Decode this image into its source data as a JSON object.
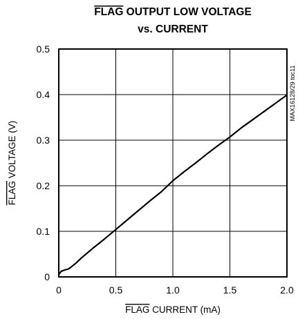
{
  "chart_data": {
    "type": "line",
    "title": {
      "overbar": "FLAG",
      "line1_rest": " OUTPUT LOW VOLTAGE",
      "line2": "vs. CURRENT"
    },
    "xlabel": {
      "overbar": "FLAG",
      "rest": " CURRENT (mA)"
    },
    "ylabel": {
      "overbar": "FLAG",
      "rest": " VOLTAGE (V)"
    },
    "side_label": "MAX16128/29 toc11",
    "xlim": [
      0,
      2.0
    ],
    "ylim": [
      0,
      0.5
    ],
    "x_ticks": [
      0,
      0.5,
      1.0,
      1.5,
      2.0
    ],
    "x_tick_labels": [
      "0",
      "0.5",
      "1.0",
      "1.5",
      "2.0"
    ],
    "y_ticks": [
      0,
      0.1,
      0.2,
      0.3,
      0.4,
      0.5
    ],
    "y_tick_labels": [
      "0",
      "0.1",
      "0.2",
      "0.3",
      "0.4",
      "0.5"
    ],
    "grid": true,
    "series": [
      {
        "x": [
          0,
          0.02,
          0.05,
          0.08,
          0.1,
          0.15,
          0.2,
          0.3,
          0.4,
          0.5,
          0.6,
          0.7,
          0.8,
          0.9,
          1.0,
          1.1,
          1.2,
          1.3,
          1.4,
          1.5,
          1.6,
          1.7,
          1.8,
          1.9,
          2.0
        ],
        "y": [
          0.005,
          0.012,
          0.015,
          0.017,
          0.02,
          0.03,
          0.042,
          0.063,
          0.083,
          0.104,
          0.125,
          0.146,
          0.167,
          0.187,
          0.211,
          0.231,
          0.25,
          0.27,
          0.289,
          0.307,
          0.327,
          0.345,
          0.363,
          0.381,
          0.399
        ]
      }
    ]
  }
}
